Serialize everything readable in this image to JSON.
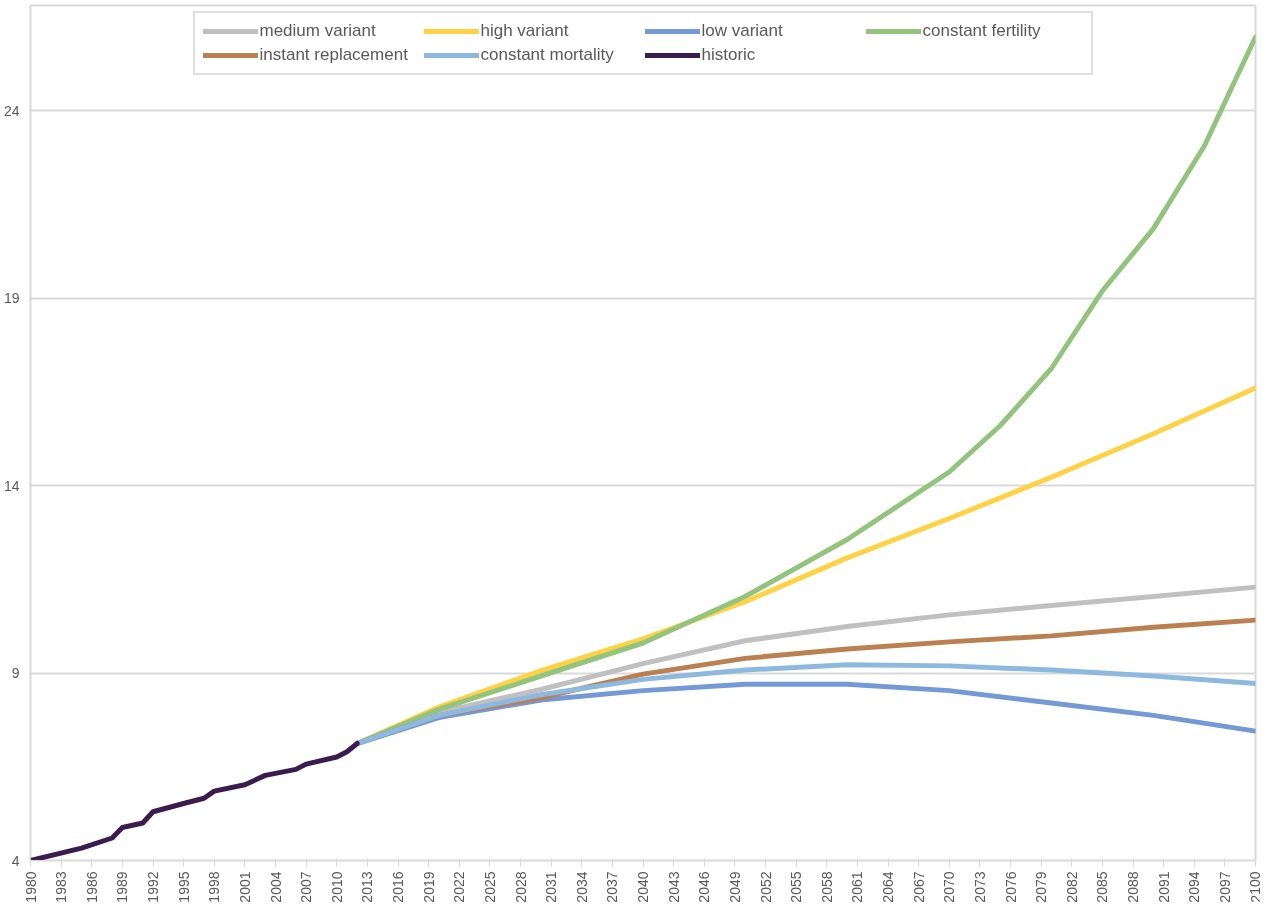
{
  "chart_data": {
    "type": "line",
    "xlim": [
      1980,
      2100
    ],
    "ylim": [
      4,
      26.8
    ],
    "xticks": [
      1980,
      1983,
      1986,
      1989,
      1992,
      1995,
      1998,
      2001,
      2004,
      2007,
      2010,
      2013,
      2016,
      2019,
      2022,
      2025,
      2028,
      2031,
      2034,
      2037,
      2040,
      2043,
      2046,
      2049,
      2052,
      2055,
      2058,
      2061,
      2064,
      2067,
      2070,
      2073,
      2076,
      2079,
      2082,
      2085,
      2088,
      2091,
      2094,
      2097,
      2100
    ],
    "yticks": [
      4,
      9,
      14,
      19,
      24
    ],
    "grid": "y",
    "legend": "top",
    "marker": "none",
    "line_style": "solid",
    "series": [
      {
        "name": "medium variant",
        "color": "#c0c0c0",
        "x": [
          2012,
          2020,
          2030,
          2040,
          2050,
          2060,
          2070,
          2080,
          2090,
          2100
        ],
        "values": [
          7.12,
          7.95,
          8.56,
          9.25,
          9.86,
          10.24,
          10.55,
          10.8,
          11.04,
          11.29
        ]
      },
      {
        "name": "high variant",
        "color": "#ffd246",
        "x": [
          2012,
          2020,
          2030,
          2040,
          2050,
          2060,
          2070,
          2080,
          2090,
          2100
        ],
        "values": [
          7.12,
          8.09,
          9.06,
          9.91,
          10.9,
          12.07,
          13.12,
          14.22,
          15.38,
          16.6
        ]
      },
      {
        "name": "low variant",
        "color": "#7399d6",
        "x": [
          2012,
          2020,
          2030,
          2040,
          2050,
          2060,
          2070,
          2080,
          2090,
          2100
        ],
        "values": [
          7.12,
          7.81,
          8.28,
          8.53,
          8.7,
          8.7,
          8.53,
          8.2,
          7.87,
          7.45
        ]
      },
      {
        "name": "constant fertility",
        "color": "#93c47d",
        "x": [
          2012,
          2020,
          2030,
          2040,
          2050,
          2060,
          2070,
          2075,
          2080,
          2085,
          2090,
          2095,
          2100
        ],
        "values": [
          7.12,
          8.03,
          8.92,
          9.8,
          11.04,
          12.56,
          14.36,
          15.6,
          17.12,
          19.19,
          20.85,
          23.06,
          25.96
        ]
      },
      {
        "name": "instant replacement",
        "color": "#bc7f4f",
        "x": [
          2012,
          2020,
          2030,
          2040,
          2050,
          2060,
          2070,
          2080,
          2090,
          2100
        ],
        "values": [
          7.12,
          7.87,
          8.34,
          8.97,
          9.39,
          9.64,
          9.83,
          9.99,
          10.22,
          10.41
        ]
      },
      {
        "name": "constant mortality",
        "color": "#8db9e0",
        "x": [
          2012,
          2020,
          2030,
          2040,
          2050,
          2060,
          2070,
          2080,
          2090,
          2100
        ],
        "values": [
          7.12,
          7.87,
          8.42,
          8.83,
          9.08,
          9.22,
          9.19,
          9.08,
          8.92,
          8.72
        ]
      },
      {
        "name": "historic",
        "color": "#3b1c4f",
        "x": [
          1980,
          1985,
          1988,
          1989,
          1991,
          1992,
          1995,
          1997,
          1998,
          2001,
          2003,
          2006,
          2007,
          2010,
          2011,
          2012
        ],
        "values": [
          4.0,
          4.33,
          4.6,
          4.88,
          5.0,
          5.3,
          5.52,
          5.66,
          5.85,
          6.02,
          6.27,
          6.43,
          6.57,
          6.76,
          6.9,
          7.12
        ]
      }
    ]
  }
}
